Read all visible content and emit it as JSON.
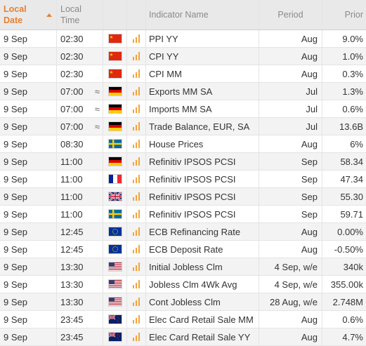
{
  "header": {
    "local_date": "Local Date",
    "local_time": "Local Time",
    "indicator_name": "Indicator Name",
    "period": "Period",
    "prior": "Prior"
  },
  "colors": {
    "accent": "#e8802f",
    "importance": "#f5a338",
    "header_bg": "#e9e9e9",
    "row_alt": "#f3f3f3"
  },
  "rows": [
    {
      "date": "9 Sep",
      "time": "02:30",
      "approx": "",
      "flag": "china-flag-icon",
      "name": "PPI YY",
      "period": "Aug",
      "prior": "9.0%"
    },
    {
      "date": "9 Sep",
      "time": "02:30",
      "approx": "",
      "flag": "china-flag-icon",
      "name": "CPI YY",
      "period": "Aug",
      "prior": "1.0%"
    },
    {
      "date": "9 Sep",
      "time": "02:30",
      "approx": "",
      "flag": "china-flag-icon",
      "name": "CPI MM",
      "period": "Aug",
      "prior": "0.3%"
    },
    {
      "date": "9 Sep",
      "time": "07:00",
      "approx": "≈",
      "flag": "germany-flag-icon",
      "name": "Exports MM SA",
      "period": "Jul",
      "prior": "1.3%"
    },
    {
      "date": "9 Sep",
      "time": "07:00",
      "approx": "≈",
      "flag": "germany-flag-icon",
      "name": "Imports MM SA",
      "period": "Jul",
      "prior": "0.6%"
    },
    {
      "date": "9 Sep",
      "time": "07:00",
      "approx": "≈",
      "flag": "germany-flag-icon",
      "name": "Trade Balance, EUR, SA",
      "period": "Jul",
      "prior": "13.6B"
    },
    {
      "date": "9 Sep",
      "time": "08:30",
      "approx": "",
      "flag": "sweden-flag-icon",
      "name": "House Prices",
      "period": "Aug",
      "prior": "6%"
    },
    {
      "date": "9 Sep",
      "time": "11:00",
      "approx": "",
      "flag": "germany-flag-icon",
      "name": "Refinitiv IPSOS PCSI",
      "period": "Sep",
      "prior": "58.34"
    },
    {
      "date": "9 Sep",
      "time": "11:00",
      "approx": "",
      "flag": "france-flag-icon",
      "name": "Refinitiv IPSOS PCSI",
      "period": "Sep",
      "prior": "47.34"
    },
    {
      "date": "9 Sep",
      "time": "11:00",
      "approx": "",
      "flag": "uk-flag-icon",
      "name": "Refinitiv IPSOS PCSI",
      "period": "Sep",
      "prior": "55.30"
    },
    {
      "date": "9 Sep",
      "time": "11:00",
      "approx": "",
      "flag": "sweden-flag-icon",
      "name": "Refinitiv IPSOS PCSI",
      "period": "Sep",
      "prior": "59.71"
    },
    {
      "date": "9 Sep",
      "time": "12:45",
      "approx": "",
      "flag": "eu-flag-icon",
      "name": "ECB Refinancing Rate",
      "period": "Aug",
      "prior": "0.00%"
    },
    {
      "date": "9 Sep",
      "time": "12:45",
      "approx": "",
      "flag": "eu-flag-icon",
      "name": "ECB Deposit Rate",
      "period": "Aug",
      "prior": "-0.50%"
    },
    {
      "date": "9 Sep",
      "time": "13:30",
      "approx": "",
      "flag": "us-flag-icon",
      "name": "Initial Jobless Clm",
      "period": "4 Sep, w/e",
      "prior": "340k"
    },
    {
      "date": "9 Sep",
      "time": "13:30",
      "approx": "",
      "flag": "us-flag-icon",
      "name": "Jobless Clm 4Wk Avg",
      "period": "4 Sep, w/e",
      "prior": "355.00k"
    },
    {
      "date": "9 Sep",
      "time": "13:30",
      "approx": "",
      "flag": "us-flag-icon",
      "name": "Cont Jobless Clm",
      "period": "28 Aug, w/e",
      "prior": "2.748M"
    },
    {
      "date": "9 Sep",
      "time": "23:45",
      "approx": "",
      "flag": "new-zealand-flag-icon",
      "name": "Elec Card Retail Sale MM",
      "period": "Aug",
      "prior": "0.6%"
    },
    {
      "date": "9 Sep",
      "time": "23:45",
      "approx": "",
      "flag": "new-zealand-flag-icon",
      "name": "Elec Card Retail Sale YY",
      "period": "Aug",
      "prior": "4.7%"
    }
  ]
}
